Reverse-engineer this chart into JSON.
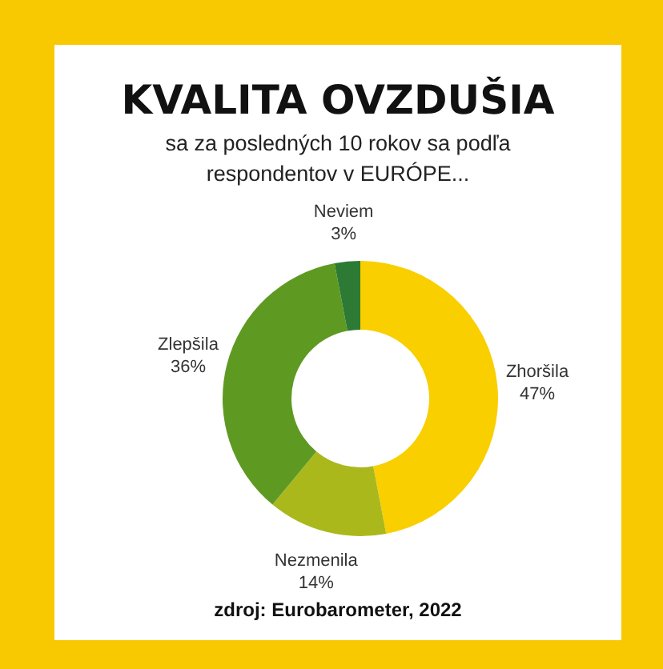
{
  "chart_data": {
    "type": "donut",
    "title": "KVALITA OVZDUŠIA",
    "subtitle": "sa za posledných 10 rokov sa podľa respondentov v EURÓPE...",
    "categories": [
      "Zhoršila",
      "Nezmenila",
      "Zlepšila",
      "Neviem"
    ],
    "values": [
      47,
      14,
      36,
      3
    ],
    "value_labels": [
      "47%",
      "14%",
      "36%",
      "3%"
    ],
    "colors": [
      "#f9cf00",
      "#aab81c",
      "#5e9a22",
      "#2d7a34"
    ],
    "legend": false,
    "annotations": [
      "zdroj: Eurobarometer, 2022"
    ]
  }
}
